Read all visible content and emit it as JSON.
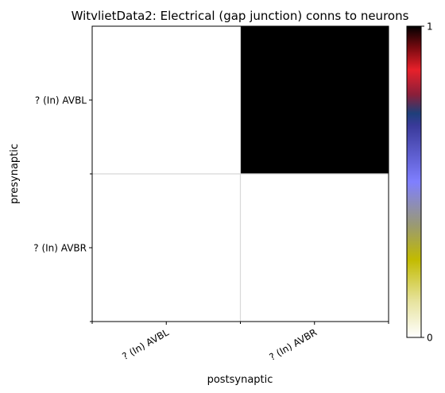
{
  "chart_data": {
    "type": "heatmap",
    "title": "WitvlietData2: Electrical (gap junction) conns to neurons",
    "xlabel": "postsynaptic",
    "ylabel": "presynaptic",
    "x_categories": [
      "? (In) AVBL",
      "? (In) AVBR"
    ],
    "y_categories": [
      "? (In) AVBL",
      "? (In) AVBR"
    ],
    "values": [
      [
        0,
        1
      ],
      [
        0,
        0
      ]
    ],
    "colorbar": {
      "min": 0,
      "max": 1,
      "tick_labels": [
        "0",
        "1"
      ]
    },
    "grid": true,
    "colormap_stops": [
      {
        "v": 0.0,
        "color": "#ffffff"
      },
      {
        "v": 0.12,
        "color": "#e6e29a"
      },
      {
        "v": 0.25,
        "color": "#c2bb00"
      },
      {
        "v": 0.36,
        "color": "#9a9a72"
      },
      {
        "v": 0.5,
        "color": "#7f7fff"
      },
      {
        "v": 0.68,
        "color": "#3a3a9a"
      },
      {
        "v": 0.72,
        "color": "#1e3f7a"
      },
      {
        "v": 0.78,
        "color": "#8a1f3a"
      },
      {
        "v": 0.86,
        "color": "#e8202a"
      },
      {
        "v": 0.93,
        "color": "#7a0a10"
      },
      {
        "v": 1.0,
        "color": "#000000"
      }
    ]
  }
}
